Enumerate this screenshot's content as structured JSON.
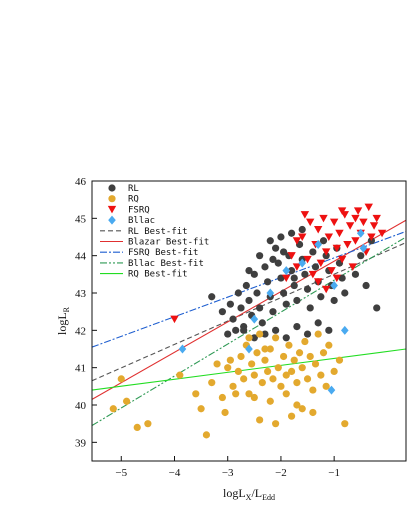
{
  "chart_data": {
    "type": "scatter",
    "title": "",
    "xlabel": "logL",
    "xlabel_sub": "X",
    "xlabel_tail": "/L",
    "xlabel_sub2": "Edd",
    "ylabel": "logL",
    "ylabel_sub": "R",
    "xlim": [
      -5.55,
      0.35
    ],
    "ylim": [
      38.5,
      46.0
    ],
    "x_ticks": [
      {
        "v": -5,
        "label": "−5"
      },
      {
        "v": -4,
        "label": "−4"
      },
      {
        "v": -3,
        "label": "−3"
      },
      {
        "v": -2,
        "label": "−2"
      },
      {
        "v": -1,
        "label": "−1"
      }
    ],
    "y_ticks": [
      {
        "v": 39,
        "label": "39"
      },
      {
        "v": 40,
        "label": "40"
      },
      {
        "v": 41,
        "label": "41"
      },
      {
        "v": 42,
        "label": "42"
      },
      {
        "v": 43,
        "label": "43"
      },
      {
        "v": 44,
        "label": "44"
      },
      {
        "v": 45,
        "label": "45"
      },
      {
        "v": 46,
        "label": "46"
      }
    ],
    "legend_position": "top-left",
    "series": [
      {
        "name": "RL",
        "marker": "circle",
        "color": "#3f3f3f",
        "points": [
          [
            -3.3,
            42.9
          ],
          [
            -3.1,
            42.5
          ],
          [
            -2.95,
            42.7
          ],
          [
            -2.9,
            42.3
          ],
          [
            -2.8,
            43.0
          ],
          [
            -2.75,
            42.6
          ],
          [
            -2.7,
            42.1
          ],
          [
            -2.65,
            43.2
          ],
          [
            -2.6,
            42.8
          ],
          [
            -2.55,
            42.4
          ],
          [
            -2.5,
            43.5
          ],
          [
            -2.45,
            43.0
          ],
          [
            -2.4,
            42.6
          ],
          [
            -2.35,
            42.2
          ],
          [
            -2.3,
            43.7
          ],
          [
            -2.25,
            43.3
          ],
          [
            -2.2,
            42.9
          ],
          [
            -2.15,
            42.5
          ],
          [
            -2.1,
            44.2
          ],
          [
            -2.05,
            43.8
          ],
          [
            -2.0,
            43.4
          ],
          [
            -1.95,
            43.0
          ],
          [
            -1.9,
            42.7
          ],
          [
            -1.85,
            44.0
          ],
          [
            -1.8,
            43.6
          ],
          [
            -1.75,
            43.2
          ],
          [
            -1.7,
            42.8
          ],
          [
            -1.65,
            44.3
          ],
          [
            -1.6,
            43.9
          ],
          [
            -1.55,
            43.5
          ],
          [
            -1.5,
            43.1
          ],
          [
            -1.45,
            42.6
          ],
          [
            -1.4,
            44.1
          ],
          [
            -1.35,
            43.7
          ],
          [
            -1.3,
            43.3
          ],
          [
            -1.25,
            42.9
          ],
          [
            -1.2,
            44.4
          ],
          [
            -1.15,
            44.0
          ],
          [
            -1.1,
            43.6
          ],
          [
            -1.05,
            43.2
          ],
          [
            -1.0,
            42.8
          ],
          [
            -0.95,
            44.2
          ],
          [
            -0.9,
            43.8
          ],
          [
            -0.85,
            43.4
          ],
          [
            -0.8,
            43.0
          ],
          [
            -2.6,
            43.6
          ],
          [
            -2.4,
            44.0
          ],
          [
            -2.2,
            44.4
          ],
          [
            -2.0,
            44.5
          ],
          [
            -1.8,
            44.6
          ],
          [
            -1.6,
            44.7
          ],
          [
            -2.7,
            42.0
          ],
          [
            -2.5,
            41.8
          ],
          [
            -2.3,
            41.9
          ],
          [
            -2.1,
            42.0
          ],
          [
            -1.9,
            41.8
          ],
          [
            -1.7,
            42.1
          ],
          [
            -1.5,
            41.9
          ],
          [
            -1.3,
            42.2
          ],
          [
            -1.1,
            42.0
          ],
          [
            -0.6,
            43.5
          ],
          [
            -0.5,
            44.0
          ],
          [
            -0.4,
            43.2
          ],
          [
            -0.3,
            44.4
          ],
          [
            -0.2,
            42.6
          ],
          [
            -3.0,
            41.9
          ],
          [
            -2.85,
            42.0
          ],
          [
            -2.15,
            43.9
          ],
          [
            -1.95,
            44.1
          ],
          [
            -1.75,
            43.4
          ]
        ]
      },
      {
        "name": "RQ",
        "marker": "circle",
        "color": "#e3a92e",
        "points": [
          [
            -5.15,
            39.9
          ],
          [
            -5.0,
            40.7
          ],
          [
            -4.9,
            40.1
          ],
          [
            -4.7,
            39.4
          ],
          [
            -4.5,
            39.5
          ],
          [
            -3.9,
            40.8
          ],
          [
            -3.6,
            40.3
          ],
          [
            -3.5,
            39.9
          ],
          [
            -3.4,
            39.2
          ],
          [
            -3.3,
            40.6
          ],
          [
            -3.1,
            40.2
          ],
          [
            -3.05,
            39.8
          ],
          [
            -3.0,
            41.0
          ],
          [
            -2.9,
            40.5
          ],
          [
            -2.8,
            40.9
          ],
          [
            -2.75,
            41.3
          ],
          [
            -2.7,
            40.7
          ],
          [
            -2.65,
            41.6
          ],
          [
            -2.6,
            40.3
          ],
          [
            -2.55,
            41.1
          ],
          [
            -2.5,
            40.8
          ],
          [
            -2.45,
            41.4
          ],
          [
            -2.4,
            41.9
          ],
          [
            -2.35,
            40.6
          ],
          [
            -2.3,
            41.2
          ],
          [
            -2.25,
            40.9
          ],
          [
            -2.2,
            41.5
          ],
          [
            -2.15,
            40.7
          ],
          [
            -2.1,
            41.8
          ],
          [
            -2.05,
            41.0
          ],
          [
            -2.0,
            40.5
          ],
          [
            -1.95,
            41.3
          ],
          [
            -1.9,
            40.8
          ],
          [
            -1.85,
            41.6
          ],
          [
            -1.8,
            40.9
          ],
          [
            -1.75,
            41.2
          ],
          [
            -1.7,
            40.6
          ],
          [
            -1.65,
            41.4
          ],
          [
            -1.6,
            41.0
          ],
          [
            -1.55,
            41.7
          ],
          [
            -1.5,
            40.7
          ],
          [
            -1.45,
            41.3
          ],
          [
            -1.4,
            40.4
          ],
          [
            -1.35,
            41.1
          ],
          [
            -1.3,
            41.9
          ],
          [
            -1.25,
            40.8
          ],
          [
            -1.2,
            41.4
          ],
          [
            -1.15,
            40.5
          ],
          [
            -1.1,
            41.6
          ],
          [
            -1.0,
            40.9
          ],
          [
            -0.9,
            41.2
          ],
          [
            -0.8,
            39.5
          ],
          [
            -1.6,
            39.9
          ],
          [
            -2.4,
            39.6
          ],
          [
            -2.1,
            39.5
          ],
          [
            -1.8,
            39.7
          ],
          [
            -2.6,
            41.8
          ],
          [
            -2.3,
            41.5
          ],
          [
            -1.7,
            40.0
          ],
          [
            -1.4,
            39.8
          ],
          [
            -2.95,
            41.2
          ],
          [
            -2.85,
            40.3
          ],
          [
            -2.5,
            40.2
          ],
          [
            -2.2,
            40.1
          ],
          [
            -1.9,
            40.3
          ],
          [
            -3.2,
            41.1
          ]
        ]
      },
      {
        "name": "FSRQ",
        "marker": "triangle-down",
        "color": "#ee1111",
        "points": [
          [
            -4.0,
            42.3
          ],
          [
            -1.9,
            43.4
          ],
          [
            -1.8,
            44.0
          ],
          [
            -1.7,
            43.7
          ],
          [
            -1.6,
            44.5
          ],
          [
            -1.5,
            43.9
          ],
          [
            -1.45,
            44.9
          ],
          [
            -1.4,
            43.5
          ],
          [
            -1.35,
            44.3
          ],
          [
            -1.3,
            44.7
          ],
          [
            -1.25,
            43.8
          ],
          [
            -1.2,
            45.0
          ],
          [
            -1.15,
            44.1
          ],
          [
            -1.1,
            44.5
          ],
          [
            -1.05,
            43.6
          ],
          [
            -1.0,
            44.9
          ],
          [
            -0.95,
            44.2
          ],
          [
            -0.9,
            44.6
          ],
          [
            -0.85,
            43.9
          ],
          [
            -0.8,
            45.1
          ],
          [
            -0.75,
            44.3
          ],
          [
            -0.7,
            44.8
          ],
          [
            -0.65,
            43.7
          ],
          [
            -0.6,
            44.4
          ],
          [
            -0.55,
            45.2
          ],
          [
            -0.5,
            44.6
          ],
          [
            -0.45,
            44.9
          ],
          [
            -0.4,
            44.1
          ],
          [
            -0.35,
            45.3
          ],
          [
            -0.3,
            44.5
          ],
          [
            -0.25,
            44.8
          ],
          [
            -0.2,
            45.0
          ],
          [
            -0.1,
            44.6
          ],
          [
            -1.55,
            45.1
          ],
          [
            -1.3,
            43.3
          ],
          [
            -0.85,
            45.2
          ],
          [
            -0.6,
            45.0
          ],
          [
            -1.15,
            43.1
          ],
          [
            -0.95,
            43.4
          ],
          [
            -1.7,
            44.4
          ]
        ]
      },
      {
        "name": "Bllac",
        "marker": "diamond",
        "color": "#4aaaf0",
        "points": [
          [
            -3.85,
            41.5
          ],
          [
            -2.6,
            41.5
          ],
          [
            -2.2,
            43.0
          ],
          [
            -1.0,
            43.2
          ],
          [
            -0.8,
            42.0
          ],
          [
            -1.05,
            40.4
          ],
          [
            -0.5,
            44.6
          ],
          [
            -0.45,
            44.2
          ],
          [
            -1.9,
            43.6
          ],
          [
            -2.5,
            42.3
          ],
          [
            -1.3,
            44.3
          ],
          [
            -1.6,
            43.8
          ]
        ]
      }
    ],
    "fits": [
      {
        "name": "RL Best-fit",
        "color": "#555555",
        "dash": "5,3",
        "x": [
          -5.55,
          0.35
        ],
        "y": [
          40.65,
          44.35
        ]
      },
      {
        "name": "Blazar Best-fit",
        "color": "#e03030",
        "dash": "",
        "x": [
          -5.55,
          0.35
        ],
        "y": [
          40.15,
          44.95
        ]
      },
      {
        "name": "FSRQ Best-fit",
        "color": "#1f5fd0",
        "dash": "7,2,2,2",
        "x": [
          -5.55,
          0.35
        ],
        "y": [
          41.55,
          44.65
        ]
      },
      {
        "name": "Bllac Best-fit",
        "color": "#2f9a55",
        "dash": "7,2,2,2,2,2",
        "x": [
          -5.55,
          0.35
        ],
        "y": [
          39.45,
          44.5
        ]
      },
      {
        "name": "RQ Best-fit",
        "color": "#22dd22",
        "dash": "",
        "x": [
          -5.55,
          0.35
        ],
        "y": [
          40.4,
          41.5
        ]
      }
    ]
  }
}
